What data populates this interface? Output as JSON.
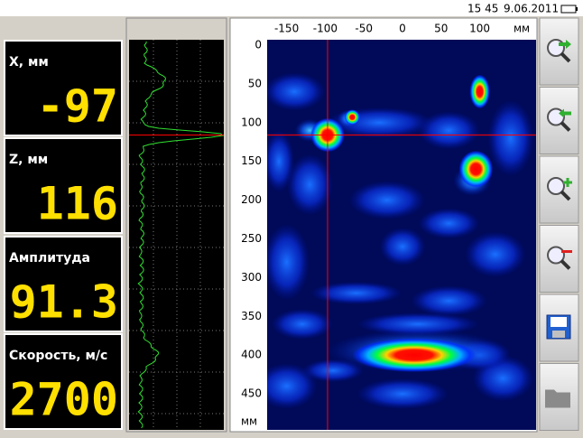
{
  "status_bar": {
    "time": "15 45",
    "date": "9.06.2011"
  },
  "readouts": [
    {
      "label": "X, мм",
      "value": "-97"
    },
    {
      "label": "Z, мм",
      "value": "116"
    },
    {
      "label": "Амплитуда",
      "value": "91.3"
    },
    {
      "label": "Скорость, м/с",
      "value": "2700"
    }
  ],
  "image": {
    "x_ticks": [
      -150,
      -100,
      -50,
      0,
      50,
      100
    ],
    "x_unit": "мм",
    "z_ticks": [
      0,
      50,
      100,
      150,
      200,
      250,
      300,
      350,
      400,
      450
    ],
    "z_unit": "мм"
  }
}
